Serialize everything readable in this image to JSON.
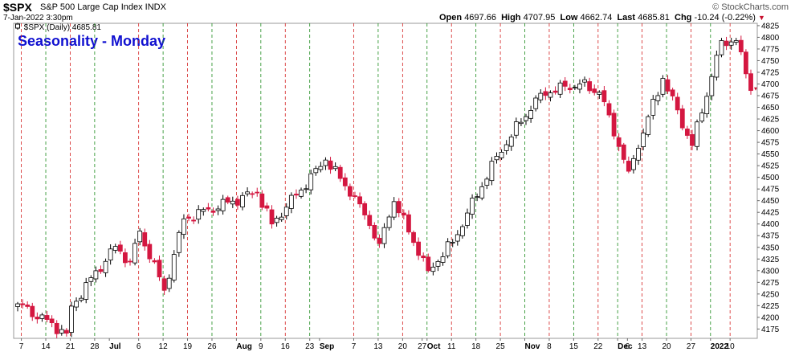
{
  "header": {
    "symbol": "$SPX",
    "description": "S&P 500 Large Cap Index INDX",
    "brand": "© StockCharts.com",
    "date": "7-Jan-2022 3:30pm",
    "open_label": "Open",
    "open": "4697.66",
    "high_label": "High",
    "high": "4707.95",
    "low_label": "Low",
    "low": "4662.74",
    "last_label": "Last",
    "last": "4685.81",
    "chg_label": "Chg",
    "chg": "-10.24 (-0.22%)",
    "legend": "$SPX (Daily) 4685.81"
  },
  "colors": {
    "up": "#000000",
    "down": "#d41740",
    "monday_line_a": "#1a8a1a",
    "monday_line_b": "#d42020",
    "title": "#1010d0",
    "last_marker": "#c8102e"
  },
  "chart_data": {
    "type": "candlestick",
    "title": "Seasonality - Monday",
    "symbol": "$SPX",
    "period": "Daily",
    "ylim": [
      4155,
      4830
    ],
    "y_ticks": [
      4175,
      4200,
      4225,
      4250,
      4275,
      4300,
      4325,
      4350,
      4375,
      4400,
      4425,
      4450,
      4475,
      4500,
      4525,
      4550,
      4575,
      4600,
      4625,
      4650,
      4675,
      4700,
      4725,
      4750,
      4775,
      4800,
      4825
    ],
    "x_tick_labels": [
      "7",
      "14",
      "21",
      "28",
      "Jul",
      "6",
      "12",
      "19",
      "26",
      "Aug",
      "9",
      "16",
      "23",
      "Sep",
      "7",
      "13",
      "20",
      "27",
      "Oct",
      "11",
      "18",
      "25",
      "Nov",
      "8",
      "15",
      "22",
      "Dec",
      "6",
      "13",
      "20",
      "27",
      "2022",
      "10"
    ],
    "grid": "vertical dashed lines on Mondays, alternating green and red",
    "last_value": 4685.81,
    "anchors": [
      {
        "date": "2021-06-04",
        "close": 4229
      },
      {
        "date": "2021-06-18",
        "close": 4166
      },
      {
        "date": "2021-06-21",
        "close": 4224
      },
      {
        "date": "2021-07-02",
        "close": 4352
      },
      {
        "date": "2021-07-08",
        "close": 4320
      },
      {
        "date": "2021-07-12",
        "close": 4385
      },
      {
        "date": "2021-07-19",
        "close": 4258
      },
      {
        "date": "2021-07-23",
        "close": 4411
      },
      {
        "date": "2021-08-13",
        "close": 4468
      },
      {
        "date": "2021-08-18",
        "close": 4400
      },
      {
        "date": "2021-09-02",
        "close": 4537
      },
      {
        "date": "2021-09-14",
        "close": 4443
      },
      {
        "date": "2021-09-20",
        "close": 4358
      },
      {
        "date": "2021-09-23",
        "close": 4448
      },
      {
        "date": "2021-10-04",
        "close": 4300
      },
      {
        "date": "2021-10-11",
        "close": 4361
      },
      {
        "date": "2021-10-22",
        "close": 4545
      },
      {
        "date": "2021-11-04",
        "close": 4680
      },
      {
        "date": "2021-11-16",
        "close": 4700
      },
      {
        "date": "2021-11-22",
        "close": 4682
      },
      {
        "date": "2021-12-01",
        "close": 4513
      },
      {
        "date": "2021-12-10",
        "close": 4712
      },
      {
        "date": "2021-12-20",
        "close": 4568
      },
      {
        "date": "2021-12-29",
        "close": 4793
      },
      {
        "date": "2022-01-04",
        "close": 4793
      },
      {
        "date": "2022-01-07",
        "close": 4686
      }
    ]
  }
}
